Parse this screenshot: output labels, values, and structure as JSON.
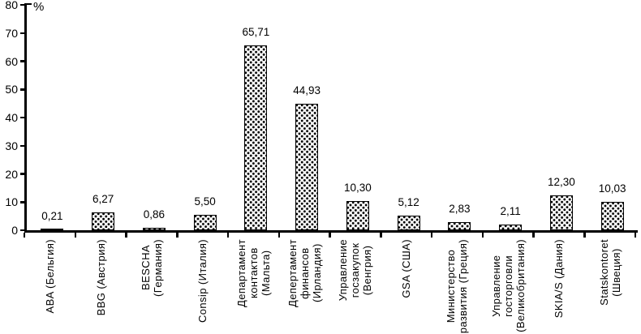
{
  "chart_data": {
    "type": "bar",
    "title": "",
    "xlabel": "",
    "ylabel": "%",
    "ylim": [
      0,
      80
    ],
    "yticks": [
      0,
      10,
      20,
      30,
      40,
      50,
      60,
      70,
      80
    ],
    "grid": "off",
    "legend": "none",
    "bar_fill": "#ffffff",
    "bar_pattern_color": "#000000",
    "axis_color": "#000000",
    "categories": [
      "ABA (Бельгия)",
      "BBG (Австрия)",
      "BESCHA\n(Германия)",
      "Consip (Италия)",
      "Департамент\nконтактов\n(Мальта)",
      "Депертамент\nфинансов\n(Ирландия)",
      "Управление\nгосзакупок\n(Венгрия)",
      "GSA (США)",
      "Министерство\nразвития (Греция)",
      "Управление\nгосторговли\n(Великобритания)",
      "SKIA/S (Дания)",
      "Statskontoret\n(Швеция)"
    ],
    "values": [
      0.21,
      6.27,
      0.86,
      5.5,
      65.71,
      44.93,
      10.3,
      5.12,
      2.83,
      2.11,
      12.3,
      10.03
    ],
    "value_labels": [
      "0,21",
      "6,27",
      "0,86",
      "5,50",
      "65,71",
      "44,93",
      "10,30",
      "5,12",
      "2,83",
      "2,11",
      "12,30",
      "10,03"
    ]
  }
}
